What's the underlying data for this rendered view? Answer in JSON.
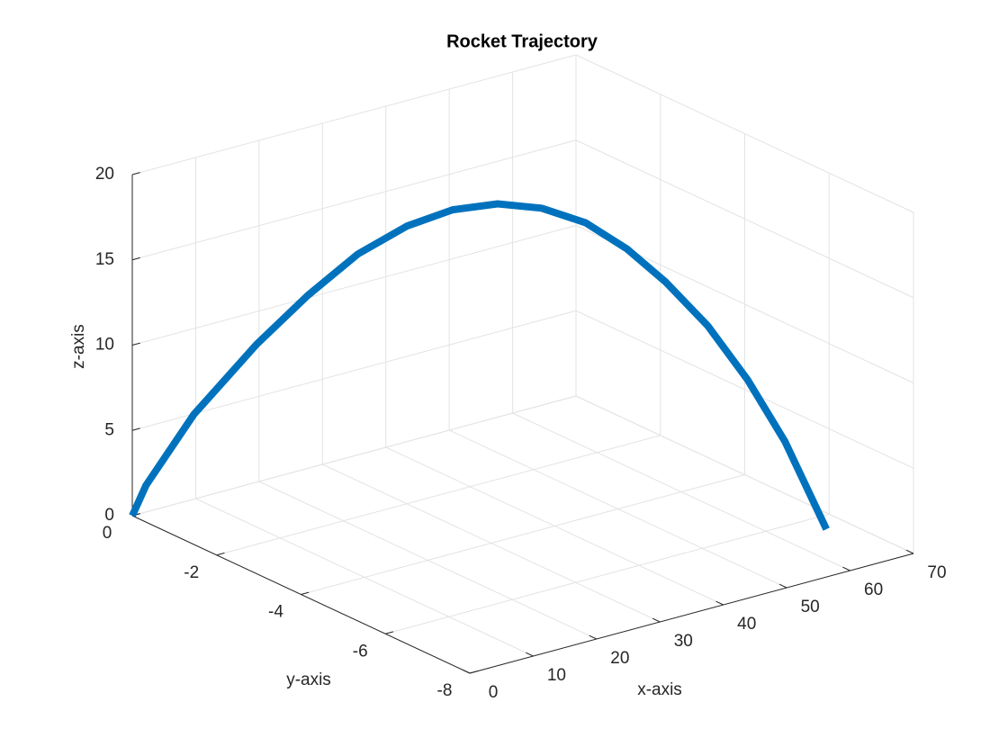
{
  "chart_data": {
    "type": "line3d",
    "title": "Rocket Trajectory",
    "xlabel": "x-axis",
    "ylabel": "y-axis",
    "zlabel": "z-axis",
    "x": [
      0,
      1.3,
      5.9,
      11.9,
      16.8,
      21.6,
      26.3,
      30.7,
      35.0,
      39.2,
      43.4,
      47.4,
      51.1,
      55.1,
      58.9,
      62.5,
      66.5
    ],
    "y": [
      0,
      -0.13,
      -0.57,
      -1.16,
      -1.63,
      -2.1,
      -2.56,
      -2.98,
      -3.4,
      -3.81,
      -4.22,
      -4.61,
      -4.97,
      -5.36,
      -5.73,
      -6.08,
      -6.46
    ],
    "z": [
      0,
      1.8,
      6.0,
      10.2,
      13.1,
      15.6,
      17.3,
      18.3,
      18.7,
      18.5,
      17.7,
      16.2,
      14.3,
      11.8,
      8.7,
      5.1,
      0
    ],
    "color": "#0072BD",
    "xlim": [
      0,
      70
    ],
    "ylim": [
      -8,
      0
    ],
    "zlim": [
      0,
      20
    ],
    "xticks": [
      0,
      10,
      20,
      30,
      40,
      50,
      60,
      70
    ],
    "yticks": [
      -8,
      -6,
      -4,
      -2,
      0
    ],
    "zticks": [
      0,
      5,
      10,
      15,
      20
    ],
    "grid": true
  }
}
